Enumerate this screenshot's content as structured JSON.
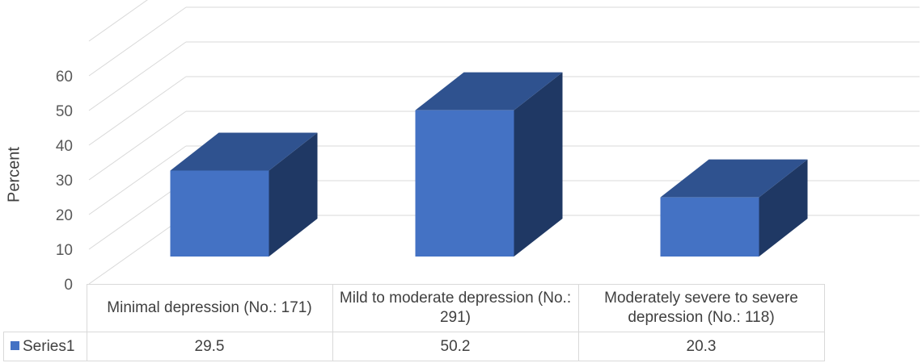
{
  "chart_data": {
    "type": "bar",
    "ylabel": "Percent",
    "ylim": [
      0,
      60
    ],
    "yticks": [
      0,
      10,
      20,
      30,
      40,
      50,
      60
    ],
    "grid": true,
    "categories": [
      "Minimal depression (No.: 171)",
      "Mild to moderate depression (No.: 291)",
      "Moderately severe to severe depression (No.: 118)"
    ],
    "series": [
      {
        "name": "Series1",
        "values": [
          29.5,
          50.2,
          20.3
        ]
      }
    ],
    "legend": "data-table",
    "colors": {
      "front": "#4472c4",
      "top": "#2f528f",
      "side": "#1f3864"
    }
  }
}
